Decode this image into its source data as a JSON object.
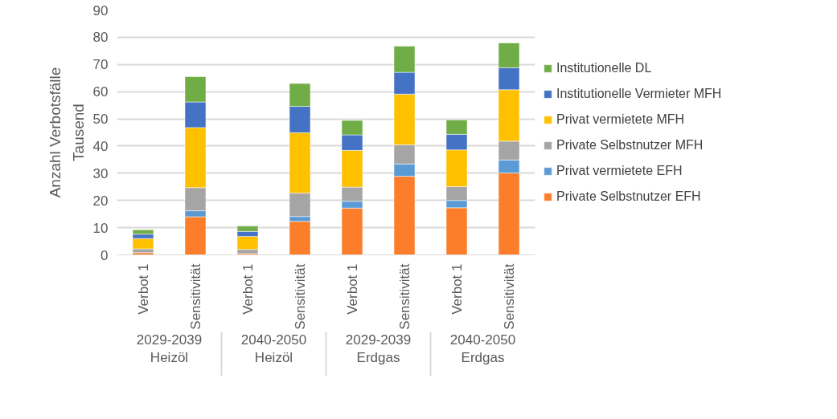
{
  "chart_data": {
    "type": "bar",
    "stacked": true,
    "ylabel": "Anzahl Verbotsfälle",
    "categories": [
      "Verbot 1",
      "Sensitivität",
      "Verbot 1",
      "Sensitivität",
      "Verbot 1",
      "Sensitivität",
      "Verbot 1",
      "Sensitivität"
    ],
    "series": [
      {
        "name": "Private Selbstnutzer EFH",
        "color": "#fd7e2a",
        "values": [
          0.8,
          14.0,
          0.5,
          12.3,
          17.2,
          28.9,
          17.3,
          30.1
        ]
      },
      {
        "name": "Privat vermietete EFH",
        "color": "#5b9bd5",
        "values": [
          null,
          2.2,
          null,
          1.8,
          2.5,
          4.5,
          2.7,
          4.8
        ]
      },
      {
        "name": "Private Selbstnutzer MFH",
        "color": "#a5a5a5",
        "values": [
          1.4,
          8.5,
          1.5,
          8.6,
          5.2,
          7.1,
          5.1,
          6.9
        ]
      },
      {
        "name": "Privat vermietete MFH",
        "color": "#ffc000",
        "values": [
          3.8,
          22.1,
          4.8,
          22.2,
          13.5,
          18.6,
          13.5,
          18.9
        ]
      },
      {
        "name": "Institutionelle Vermieter MFH",
        "color": "#4472c4",
        "values": [
          1.6,
          9.4,
          1.8,
          9.7,
          5.7,
          8.0,
          5.7,
          8.1
        ]
      },
      {
        "name": "Institutionelle DL",
        "color": "#70ad47",
        "values": [
          1.6,
          9.3,
          2.0,
          8.4,
          5.3,
          9.6,
          5.3,
          9.1
        ]
      }
    ],
    "ylim": [
      0,
      90
    ],
    "yticks": [
      0,
      10,
      20,
      30,
      40,
      50,
      60,
      70,
      80,
      90
    ],
    "grid": "y",
    "legend": "right",
    "annotations": [
      "Tausend",
      "2029-2039\nHeizöl",
      "2040-2050\nHeizöl",
      "2029-2039\nErdgas",
      "2040-2050\nErdgas"
    ]
  }
}
